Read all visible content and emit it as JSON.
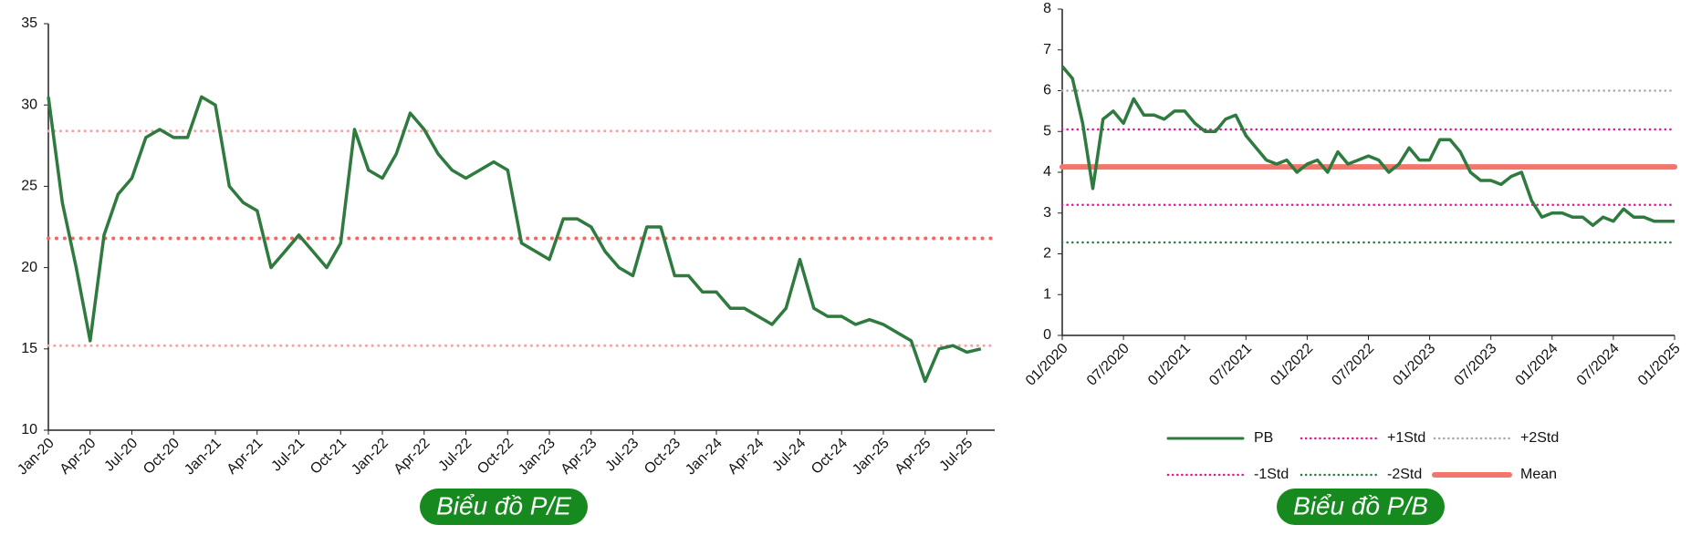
{
  "chart_data": [
    {
      "type": "line",
      "caption": "Biểu đồ P/E",
      "x": [
        "2020-01",
        "2020-02",
        "2020-03",
        "2020-04",
        "2020-05",
        "2020-06",
        "2020-07",
        "2020-08",
        "2020-09",
        "2020-10",
        "2020-11",
        "2020-12",
        "2021-01",
        "2021-02",
        "2021-03",
        "2021-04",
        "2021-05",
        "2021-06",
        "2021-07",
        "2021-08",
        "2021-09",
        "2021-10",
        "2021-11",
        "2021-12",
        "2022-01",
        "2022-02",
        "2022-03",
        "2022-04",
        "2022-05",
        "2022-06",
        "2022-07",
        "2022-08",
        "2022-09",
        "2022-10",
        "2022-11",
        "2022-12",
        "2023-01",
        "2023-02",
        "2023-03",
        "2023-04",
        "2023-05",
        "2023-06",
        "2023-07",
        "2023-08",
        "2023-09",
        "2023-10",
        "2023-11",
        "2023-12",
        "2024-01",
        "2024-02",
        "2024-03",
        "2024-04",
        "2024-05",
        "2024-06",
        "2024-07",
        "2024-08",
        "2024-09",
        "2024-10",
        "2024-11",
        "2024-12",
        "2025-01",
        "2025-02",
        "2025-03",
        "2025-04",
        "2025-05",
        "2025-06",
        "2025-07",
        "2025-08"
      ],
      "series": [
        {
          "color": "#2e7a3f",
          "values": [
            30.5,
            24,
            20,
            15.5,
            22,
            24.5,
            25.5,
            28,
            28.5,
            28,
            28,
            30.5,
            30,
            25,
            24,
            23.5,
            20,
            21,
            22,
            21,
            20,
            21.5,
            28.5,
            26,
            25.5,
            27,
            29.5,
            28.5,
            27,
            26,
            25.5,
            26,
            26.5,
            26,
            21.5,
            21,
            20.5,
            23,
            23,
            22.5,
            21,
            20,
            19.5,
            22.5,
            22.5,
            19.5,
            19.5,
            18.5,
            18.5,
            17.5,
            17.5,
            17,
            16.5,
            17.5,
            20.5,
            17.5,
            17,
            17,
            16.5,
            16.8,
            16.5,
            16,
            15.5,
            13,
            15,
            15.2,
            14.8,
            15
          ]
        }
      ],
      "reference_lines": [
        {
          "value": 28.4,
          "color": "#f5a3a3",
          "width": 3
        },
        {
          "value": 21.8,
          "color": "#ee6a60",
          "width": 4
        },
        {
          "value": 15.2,
          "color": "#f5a3a3",
          "width": 3
        }
      ],
      "xlim": [
        "2020-01",
        "2025-09"
      ],
      "xticks": [
        {
          "value": "2020-01",
          "label": "Jan-20"
        },
        {
          "value": "2020-04",
          "label": "Apr-20"
        },
        {
          "value": "2020-07",
          "label": "Jul-20"
        },
        {
          "value": "2020-10",
          "label": "Oct-20"
        },
        {
          "value": "2021-01",
          "label": "Jan-21"
        },
        {
          "value": "2021-04",
          "label": "Apr-21"
        },
        {
          "value": "2021-07",
          "label": "Jul-21"
        },
        {
          "value": "2021-10",
          "label": "Oct-21"
        },
        {
          "value": "2022-01",
          "label": "Jan-22"
        },
        {
          "value": "2022-04",
          "label": "Apr-22"
        },
        {
          "value": "2022-07",
          "label": "Jul-22"
        },
        {
          "value": "2022-10",
          "label": "Oct-22"
        },
        {
          "value": "2023-01",
          "label": "Jan-23"
        },
        {
          "value": "2023-04",
          "label": "Apr-23"
        },
        {
          "value": "2023-07",
          "label": "Jul-23"
        },
        {
          "value": "2023-10",
          "label": "Oct-23"
        },
        {
          "value": "2024-01",
          "label": "Jan-24"
        },
        {
          "value": "2024-04",
          "label": "Apr-24"
        },
        {
          "value": "2024-07",
          "label": "Jul-24"
        },
        {
          "value": "2024-10",
          "label": "Oct-24"
        },
        {
          "value": "2025-01",
          "label": "Jan-25"
        },
        {
          "value": "2025-04",
          "label": "Apr-25"
        },
        {
          "value": "2025-07",
          "label": "Jul-25"
        }
      ],
      "ylim": [
        10,
        35
      ],
      "yticks": [
        10,
        15,
        20,
        25,
        30,
        35
      ]
    },
    {
      "type": "line",
      "caption": "Biểu đồ P/B",
      "x": [
        "2020-01",
        "2020-02",
        "2020-03",
        "2020-04",
        "2020-05",
        "2020-06",
        "2020-07",
        "2020-08",
        "2020-09",
        "2020-10",
        "2020-11",
        "2020-12",
        "2021-01",
        "2021-02",
        "2021-03",
        "2021-04",
        "2021-05",
        "2021-06",
        "2021-07",
        "2021-08",
        "2021-09",
        "2021-10",
        "2021-11",
        "2021-12",
        "2022-01",
        "2022-02",
        "2022-03",
        "2022-04",
        "2022-05",
        "2022-06",
        "2022-07",
        "2022-08",
        "2022-09",
        "2022-10",
        "2022-11",
        "2022-12",
        "2023-01",
        "2023-02",
        "2023-03",
        "2023-04",
        "2023-05",
        "2023-06",
        "2023-07",
        "2023-08",
        "2023-09",
        "2023-10",
        "2023-11",
        "2023-12",
        "2024-01",
        "2024-02",
        "2024-03",
        "2024-04",
        "2024-05",
        "2024-06",
        "2024-07",
        "2024-08",
        "2024-09",
        "2024-10",
        "2024-11",
        "2024-12",
        "2025-01"
      ],
      "series": [
        {
          "name": "PB",
          "color": "#2e7a3f",
          "values": [
            6.6,
            6.3,
            5.2,
            3.6,
            5.3,
            5.5,
            5.2,
            5.8,
            5.4,
            5.4,
            5.3,
            5.5,
            5.5,
            5.2,
            5.0,
            5.0,
            5.3,
            5.4,
            4.9,
            4.6,
            4.3,
            4.2,
            4.3,
            4.0,
            4.2,
            4.3,
            4.0,
            4.5,
            4.2,
            4.3,
            4.4,
            4.3,
            4.0,
            4.2,
            4.6,
            4.3,
            4.3,
            4.8,
            4.8,
            4.5,
            4.0,
            3.8,
            3.8,
            3.7,
            3.9,
            4.0,
            3.3,
            2.9,
            3.0,
            3.0,
            2.9,
            2.9,
            2.7,
            2.9,
            2.8,
            3.1,
            2.9,
            2.9,
            2.8,
            2.8,
            2.8
          ]
        }
      ],
      "reference_lines": [
        {
          "name": "+1Std",
          "value": 5.05,
          "color": "#e0198c",
          "width": 2.5
        },
        {
          "name": "+2Std",
          "value": 6.0,
          "color": "#a8a8a8",
          "width": 2.5
        },
        {
          "name": "-1Std",
          "value": 3.2,
          "color": "#e0198c",
          "width": 2.5
        },
        {
          "name": "-2Std",
          "value": 2.28,
          "color": "#2e7a3f",
          "width": 2.5
        },
        {
          "name": "Mean",
          "value": 4.13,
          "color": "#f4756b",
          "width": 6,
          "solid": true
        }
      ],
      "xlim": [
        "2020-01",
        "2025-01"
      ],
      "xticks": [
        {
          "value": "2020-01",
          "label": "01/2020"
        },
        {
          "value": "2020-07",
          "label": "07/2020"
        },
        {
          "value": "2021-01",
          "label": "01/2021"
        },
        {
          "value": "2021-07",
          "label": "07/2021"
        },
        {
          "value": "2022-01",
          "label": "01/2022"
        },
        {
          "value": "2022-07",
          "label": "07/2022"
        },
        {
          "value": "2023-01",
          "label": "01/2023"
        },
        {
          "value": "2023-07",
          "label": "07/2023"
        },
        {
          "value": "2024-01",
          "label": "01/2024"
        },
        {
          "value": "2024-07",
          "label": "07/2024"
        },
        {
          "value": "2025-01",
          "label": "01/2025"
        }
      ],
      "ylim": [
        0,
        8
      ],
      "yticks": [
        0,
        1,
        2,
        3,
        4,
        5,
        6,
        7,
        8
      ]
    }
  ]
}
